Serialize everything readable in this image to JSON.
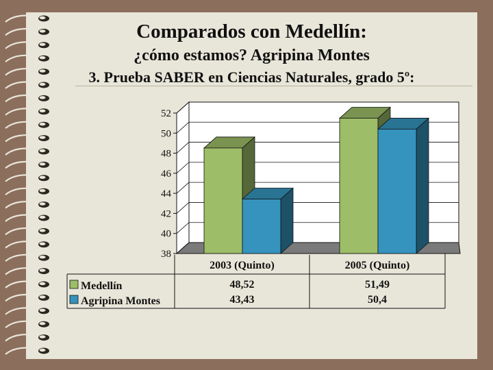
{
  "slide": {
    "title": "Comparados con Medellín:",
    "subtitle": "¿cómo estamos? Agripina Montes",
    "heading": "3. Prueba SABER en Ciencias Naturales, grado 5º:"
  },
  "chart_data": {
    "type": "bar",
    "categories": [
      "2003 (Quinto)",
      "2005 (Quinto)"
    ],
    "series": [
      {
        "name": "Medellín",
        "values": [
          48.52,
          51.49
        ],
        "labels": [
          "48,52",
          "51,49"
        ],
        "color": "#9dbd68"
      },
      {
        "name": "Agripina Montes",
        "values": [
          43.43,
          50.4
        ],
        "labels": [
          "43,43",
          "50,4"
        ],
        "color": "#3593bd"
      }
    ],
    "ylim": [
      38,
      52
    ],
    "yticks": [
      38,
      40,
      42,
      44,
      46,
      48,
      50,
      52
    ],
    "grid": true,
    "style": "3d",
    "data_table": true
  }
}
